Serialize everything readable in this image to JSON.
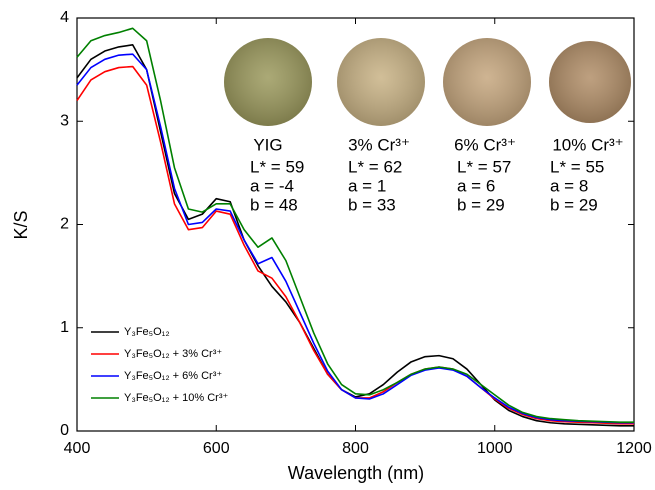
{
  "chart_data": {
    "type": "line",
    "xlabel": "Wavelength (nm)",
    "ylabel": "K/S",
    "xlim": [
      400,
      1200
    ],
    "ylim": [
      0,
      4
    ],
    "xticks": [
      400,
      600,
      800,
      1000,
      1200
    ],
    "yticks": [
      0,
      1,
      2,
      3,
      4
    ],
    "legend": "lower left",
    "x": [
      400,
      420,
      440,
      460,
      480,
      500,
      520,
      540,
      560,
      580,
      600,
      620,
      640,
      660,
      680,
      700,
      720,
      740,
      760,
      780,
      800,
      820,
      840,
      860,
      880,
      900,
      920,
      940,
      960,
      980,
      1000,
      1020,
      1040,
      1060,
      1080,
      1100,
      1120,
      1140,
      1160,
      1180,
      1200
    ],
    "series": [
      {
        "name": "Y₃Fe₅O₁₂",
        "color": "#000000",
        "values": [
          3.42,
          3.6,
          3.68,
          3.72,
          3.74,
          3.5,
          2.9,
          2.3,
          2.05,
          2.1,
          2.25,
          2.22,
          1.85,
          1.6,
          1.4,
          1.25,
          1.05,
          0.8,
          0.55,
          0.4,
          0.33,
          0.36,
          0.45,
          0.57,
          0.67,
          0.72,
          0.73,
          0.7,
          0.6,
          0.45,
          0.3,
          0.2,
          0.14,
          0.1,
          0.08,
          0.07,
          0.065,
          0.06,
          0.055,
          0.05,
          0.05
        ]
      },
      {
        "name": "Y₃Fe₅O₁₂ + 3% Cr³⁺",
        "color": "#ff0000",
        "values": [
          3.2,
          3.4,
          3.48,
          3.52,
          3.53,
          3.35,
          2.8,
          2.2,
          1.95,
          1.97,
          2.13,
          2.1,
          1.8,
          1.55,
          1.48,
          1.3,
          1.05,
          0.78,
          0.55,
          0.4,
          0.32,
          0.32,
          0.38,
          0.47,
          0.55,
          0.6,
          0.62,
          0.6,
          0.53,
          0.42,
          0.31,
          0.22,
          0.16,
          0.12,
          0.1,
          0.09,
          0.085,
          0.08,
          0.075,
          0.07,
          0.07
        ]
      },
      {
        "name": "Y₃Fe₅O₁₂ + 6% Cr³⁺",
        "color": "#0000ff",
        "values": [
          3.35,
          3.52,
          3.6,
          3.64,
          3.65,
          3.5,
          2.95,
          2.35,
          2.0,
          2.02,
          2.15,
          2.13,
          1.85,
          1.62,
          1.68,
          1.45,
          1.15,
          0.85,
          0.58,
          0.4,
          0.32,
          0.31,
          0.36,
          0.45,
          0.54,
          0.59,
          0.61,
          0.59,
          0.53,
          0.42,
          0.32,
          0.23,
          0.17,
          0.13,
          0.11,
          0.1,
          0.095,
          0.09,
          0.085,
          0.08,
          0.08
        ]
      },
      {
        "name": "Y₃Fe₅O₁₂ + 10% Cr³⁺",
        "color": "#008000",
        "values": [
          3.62,
          3.78,
          3.83,
          3.86,
          3.9,
          3.78,
          3.2,
          2.55,
          2.15,
          2.12,
          2.2,
          2.2,
          1.95,
          1.78,
          1.87,
          1.65,
          1.3,
          0.95,
          0.65,
          0.45,
          0.36,
          0.35,
          0.4,
          0.47,
          0.55,
          0.6,
          0.62,
          0.6,
          0.55,
          0.45,
          0.35,
          0.25,
          0.18,
          0.14,
          0.12,
          0.11,
          0.1,
          0.095,
          0.09,
          0.085,
          0.085
        ]
      }
    ],
    "annotations": [
      {
        "label": "YIG",
        "color": "#9c9a5e",
        "lines": [
          "L* = 59",
          "a = -4",
          "b = 48"
        ]
      },
      {
        "label": "3% Cr³⁺",
        "color": "#c9b386",
        "lines": [
          "L* = 62",
          "a = 1",
          "b = 33"
        ]
      },
      {
        "label": "6% Cr³⁺",
        "color": "#c6a77f",
        "lines": [
          "L* = 57",
          "a = 6",
          "b = 29"
        ]
      },
      {
        "label": "10% Cr³⁺",
        "color": "#b28f69",
        "lines": [
          "L* = 55",
          "a = 8",
          "b = 29"
        ]
      }
    ]
  }
}
